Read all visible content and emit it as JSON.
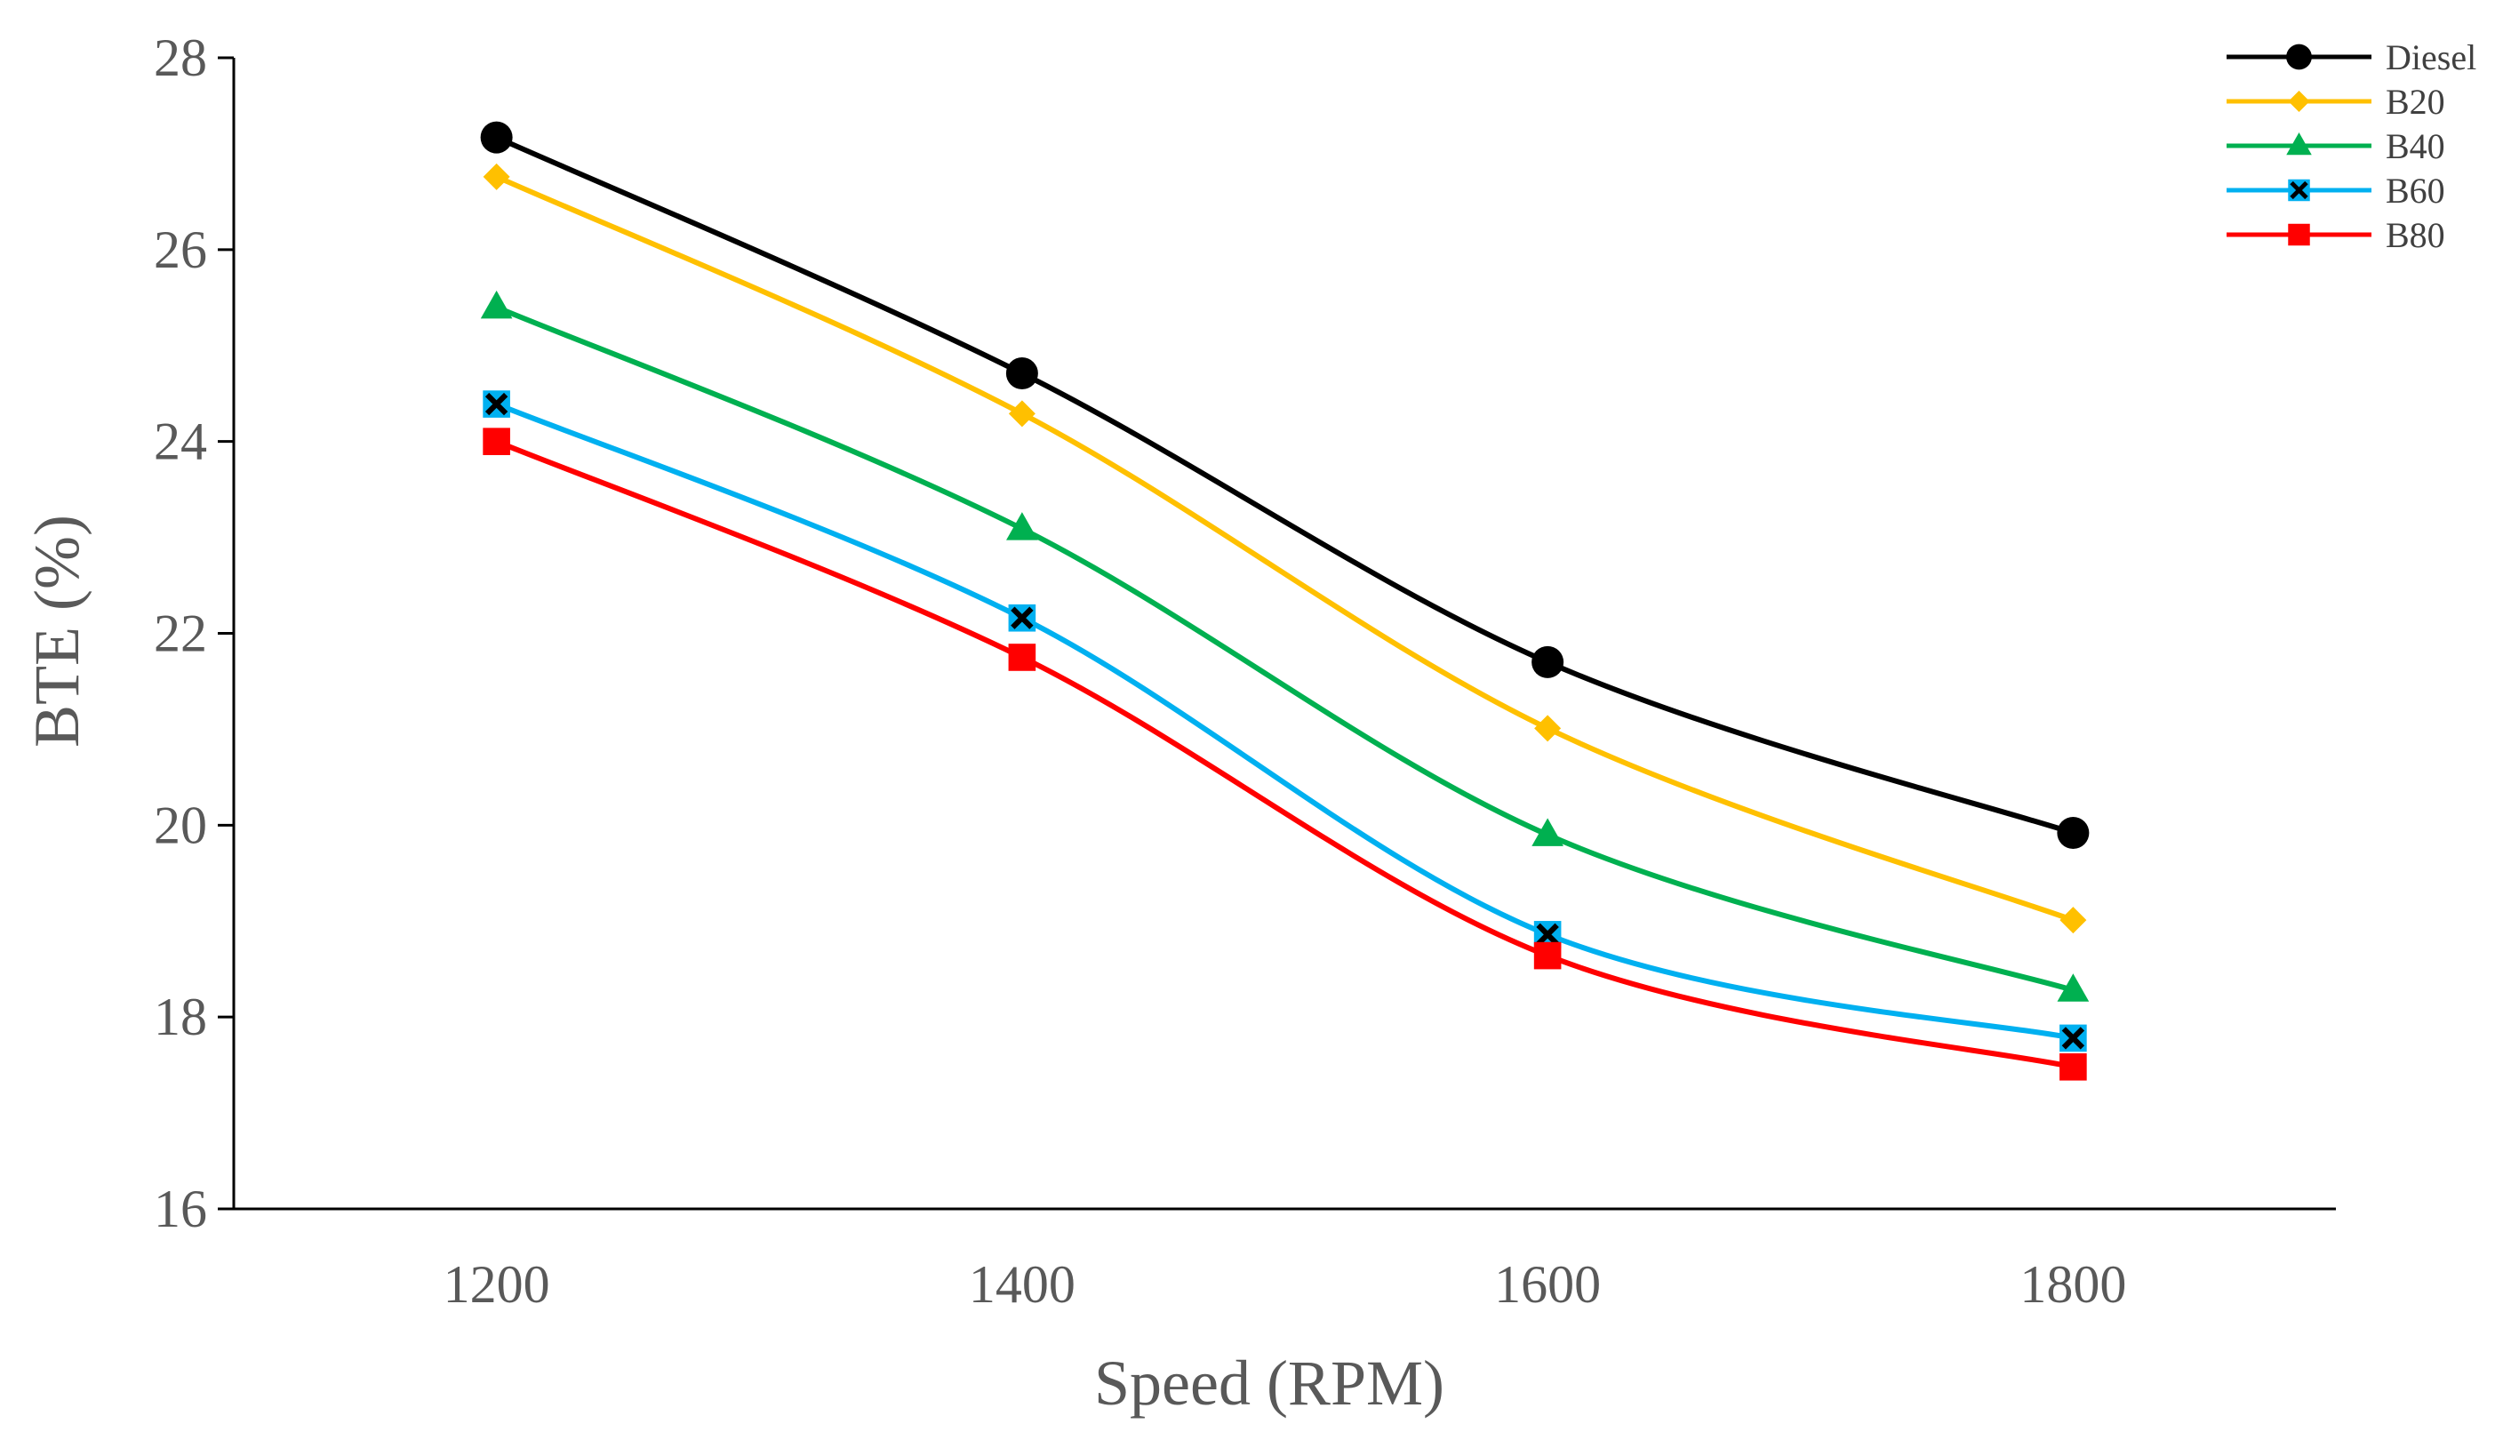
{
  "chart_data": {
    "type": "line",
    "title": "",
    "xlabel": "Speed (RPM)",
    "ylabel": "BTE (%)",
    "x": [
      1200,
      1400,
      1600,
      1800
    ],
    "x_tick_labels": [
      "1200",
      "1400",
      "1600",
      "1800"
    ],
    "xlim": [
      1100,
      1900
    ],
    "ylim": [
      16,
      28
    ],
    "y_ticks": [
      16,
      18,
      20,
      22,
      24,
      26,
      28
    ],
    "y_tick_labels": [
      "16",
      "18",
      "20",
      "22",
      "24",
      "26",
      "28"
    ],
    "grid": false,
    "legend_position": "top-right",
    "series": [
      {
        "name": "Diesel",
        "values": [
          27.17,
          24.71,
          21.7,
          19.92
        ],
        "color": "#000000",
        "marker": "circle"
      },
      {
        "name": "B20",
        "values": [
          26.76,
          24.29,
          21.01,
          19.01
        ],
        "color": "#FFC000",
        "marker": "diamond"
      },
      {
        "name": "B40",
        "values": [
          25.4,
          23.09,
          19.9,
          18.28
        ],
        "color": "#00B050",
        "marker": "triangle"
      },
      {
        "name": "B60",
        "values": [
          24.39,
          22.16,
          18.86,
          17.78
        ],
        "color": "#00B0F0",
        "marker": "x-square"
      },
      {
        "name": "B80",
        "values": [
          24.0,
          21.75,
          18.64,
          17.48
        ],
        "color": "#FF0000",
        "marker": "square"
      }
    ]
  }
}
